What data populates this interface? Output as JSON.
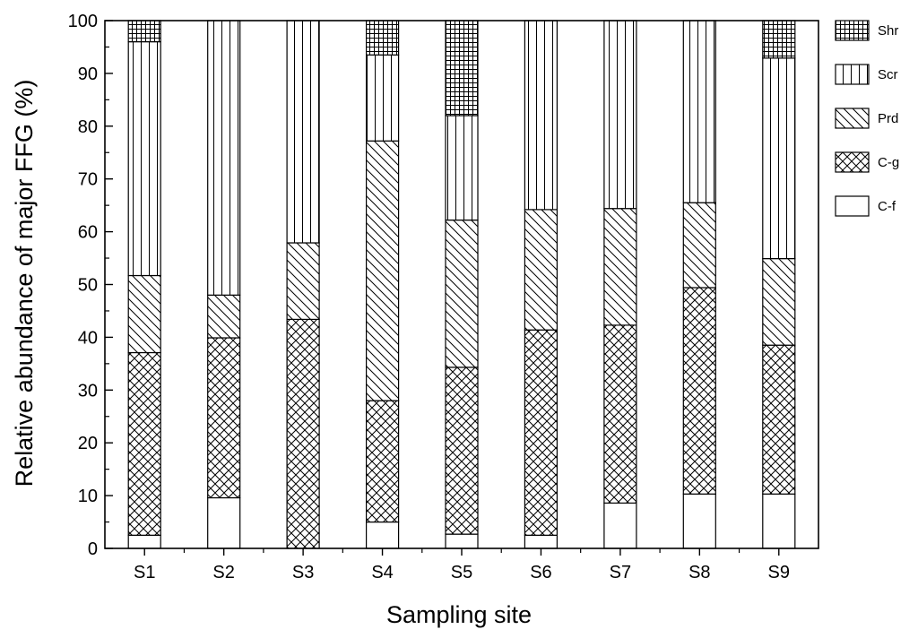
{
  "chart_data": {
    "type": "bar",
    "stacked": true,
    "xlabel": "Sampling site",
    "ylabel": "Relative abundance of major FFG (%)",
    "ylim": [
      0,
      100
    ],
    "yticks": [
      "0",
      "10",
      "20",
      "30",
      "40",
      "50",
      "60",
      "70",
      "80",
      "90",
      "100"
    ],
    "categories": [
      "S1",
      "S2",
      "S3",
      "S4",
      "S5",
      "S6",
      "S7",
      "S8",
      "S9"
    ],
    "legend_position": "right",
    "series": [
      {
        "name": "C-f",
        "pattern": "blank",
        "values": [
          2.5,
          9.6,
          0,
          5,
          2.7,
          2.5,
          8.6,
          10.3,
          10.3
        ]
      },
      {
        "name": "C-g",
        "pattern": "crosshatch",
        "values": [
          34.6,
          30.3,
          43.4,
          23,
          31.6,
          38.9,
          33.7,
          39.1,
          28.2
        ]
      },
      {
        "name": "Prd",
        "pattern": "diagonal",
        "values": [
          14.6,
          8.1,
          14.5,
          49.2,
          27.9,
          22.8,
          22.1,
          16.1,
          16.4
        ]
      },
      {
        "name": "Scr",
        "pattern": "vertical",
        "values": [
          44.3,
          52,
          42.1,
          16.3,
          19.8,
          35.8,
          35.6,
          34.5,
          38
        ]
      },
      {
        "name": "Shr",
        "pattern": "grid",
        "values": [
          4,
          0,
          0,
          6.5,
          18,
          0,
          0,
          0,
          7.1
        ]
      }
    ],
    "legend_order": [
      "Shr",
      "Scr",
      "Prd",
      "C-g",
      "C-f"
    ]
  }
}
